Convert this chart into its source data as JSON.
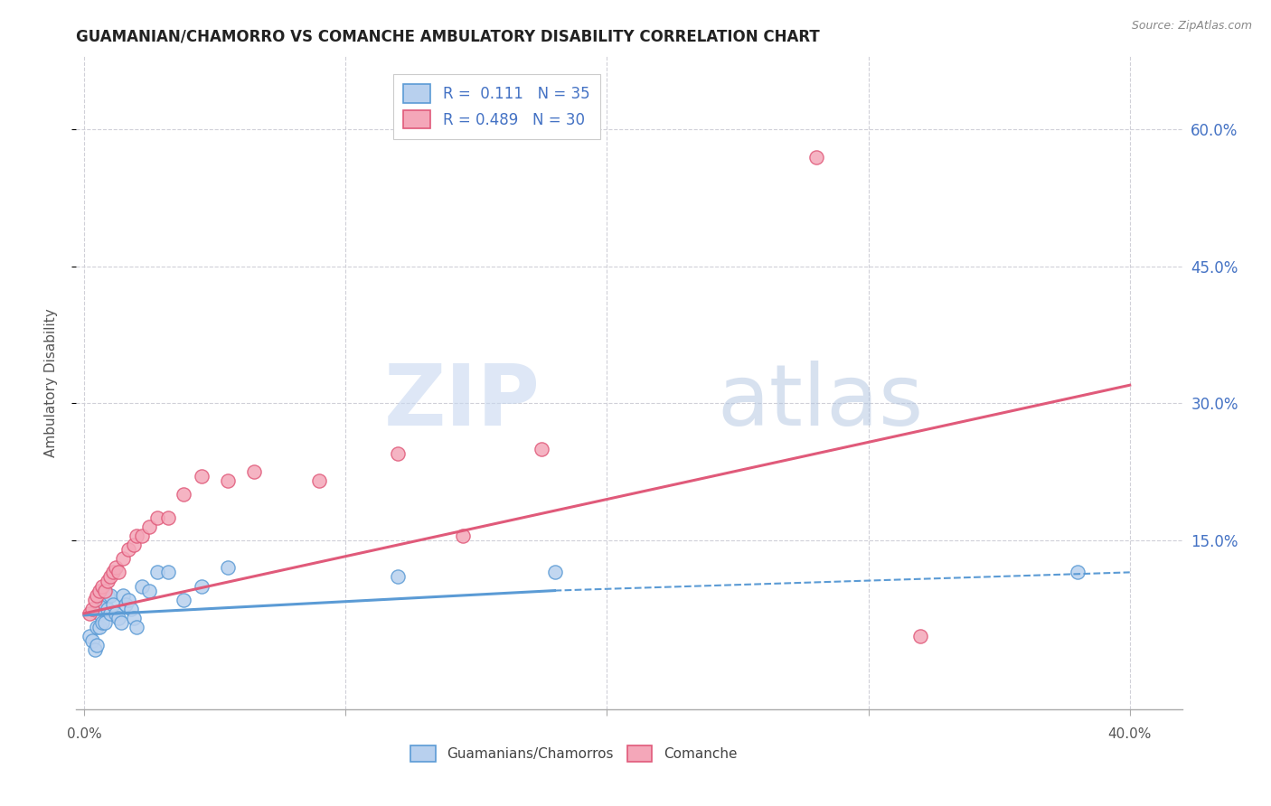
{
  "title": "GUAMANIAN/CHAMORRO VS COMANCHE AMBULATORY DISABILITY CORRELATION CHART",
  "source": "Source: ZipAtlas.com",
  "ylabel": "Ambulatory Disability",
  "ytick_labels": [
    "60.0%",
    "45.0%",
    "30.0%",
    "15.0%"
  ],
  "ytick_values": [
    0.6,
    0.45,
    0.3,
    0.15
  ],
  "xlim": [
    -0.003,
    0.42
  ],
  "ylim": [
    -0.035,
    0.68
  ],
  "legend_r1": "R =  0.111",
  "legend_n1": "N = 35",
  "legend_r2": "R = 0.489",
  "legend_n2": "N = 30",
  "color_blue": "#5b9bd5",
  "color_blue_fill": "#b8d0ee",
  "color_pink": "#f4a7b9",
  "color_pink_line": "#e05a7a",
  "color_text_blue": "#4472c4",
  "background": "#ffffff",
  "grid_color": "#d0d0d8",
  "guamanian_x": [
    0.002,
    0.003,
    0.004,
    0.005,
    0.005,
    0.006,
    0.006,
    0.007,
    0.007,
    0.008,
    0.008,
    0.009,
    0.009,
    0.01,
    0.01,
    0.011,
    0.012,
    0.013,
    0.014,
    0.015,
    0.016,
    0.017,
    0.018,
    0.019,
    0.02,
    0.022,
    0.025,
    0.028,
    0.032,
    0.038,
    0.045,
    0.055,
    0.12,
    0.18,
    0.38
  ],
  "guamanian_y": [
    0.045,
    0.04,
    0.03,
    0.055,
    0.035,
    0.07,
    0.055,
    0.075,
    0.06,
    0.08,
    0.06,
    0.09,
    0.075,
    0.09,
    0.07,
    0.08,
    0.07,
    0.065,
    0.06,
    0.09,
    0.08,
    0.085,
    0.075,
    0.065,
    0.055,
    0.1,
    0.095,
    0.115,
    0.115,
    0.085,
    0.1,
    0.12,
    0.11,
    0.115,
    0.115
  ],
  "comanche_x": [
    0.002,
    0.003,
    0.004,
    0.005,
    0.006,
    0.007,
    0.008,
    0.009,
    0.01,
    0.011,
    0.012,
    0.013,
    0.015,
    0.017,
    0.019,
    0.02,
    0.022,
    0.025,
    0.028,
    0.032,
    0.038,
    0.045,
    0.055,
    0.065,
    0.09,
    0.12,
    0.145,
    0.175,
    0.28,
    0.32
  ],
  "comanche_y": [
    0.07,
    0.075,
    0.085,
    0.09,
    0.095,
    0.1,
    0.095,
    0.105,
    0.11,
    0.115,
    0.12,
    0.115,
    0.13,
    0.14,
    0.145,
    0.155,
    0.155,
    0.165,
    0.175,
    0.175,
    0.2,
    0.22,
    0.215,
    0.225,
    0.215,
    0.245,
    0.155,
    0.25,
    0.57,
    0.045
  ],
  "blue_trend_x": [
    0.0,
    0.18
  ],
  "blue_trend_y": [
    0.068,
    0.095
  ],
  "pink_trend_x": [
    0.0,
    0.4
  ],
  "pink_trend_y": [
    0.07,
    0.32
  ],
  "dashed_trend_x": [
    0.18,
    0.4
  ],
  "dashed_trend_y": [
    0.095,
    0.115
  ],
  "watermark_zip": "ZIP",
  "watermark_atlas": "atlas"
}
